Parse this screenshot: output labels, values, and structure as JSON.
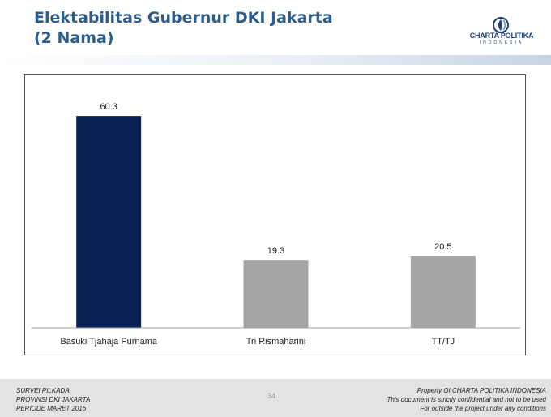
{
  "header": {
    "title_line1": "Elektabilitas Gubernur DKI Jakarta",
    "title_line2": "(2 Nama)"
  },
  "logo": {
    "name": "CHARTA POLITIKA",
    "subtitle": "INDONESIA",
    "icon": "charta-politika-logo-icon"
  },
  "chart_data": {
    "type": "bar",
    "categories": [
      "Basuki Tjahaja Purnama",
      "Tri Rismaharini",
      "TT/TJ"
    ],
    "values": [
      60.3,
      19.3,
      20.5
    ],
    "colors": [
      "#0b2257",
      "#a6a6a6",
      "#a6a6a6"
    ],
    "ylim": [
      0,
      70
    ],
    "grid": false,
    "data_labels": true
  },
  "footer": {
    "left_lines": [
      "SURVEI PILKADA",
      "PROVINSI DKI JAKARTA",
      "PERIODE  MARET 2016"
    ],
    "page_number": "34",
    "right_lines": [
      "Property Of CHARTA POLITIKA INDONESIA",
      "This document is strictly confidential and not to be used",
      "For  outside the project under any conditions"
    ]
  }
}
